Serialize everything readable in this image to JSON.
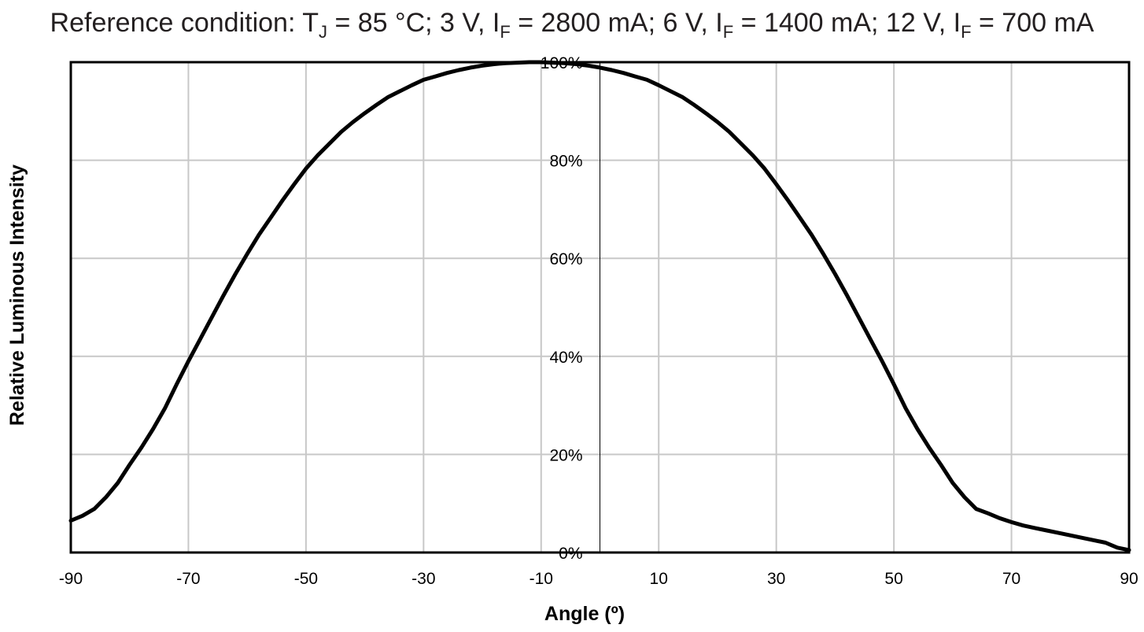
{
  "chart_data": {
    "type": "line",
    "title": {
      "prefix": "Reference condition: T",
      "tj_sub": "J",
      "part1": " = 85 °C; 3 V, I",
      "if_sub1": "F",
      "part2": " = 2800 mA; 6 V, I",
      "if_sub2": "F",
      "part3": " = 1400 mA; 12 V, I",
      "if_sub3": "F",
      "part4": " = 700 mA"
    },
    "xlabel": "Angle (º)",
    "ylabel": "Relative Luminous Intensity",
    "xlim": [
      -90,
      90
    ],
    "ylim": [
      0,
      100
    ],
    "x_ticks": [
      -90,
      -70,
      -50,
      -30,
      -10,
      10,
      30,
      50,
      70,
      90
    ],
    "x_tick_labels": [
      "-90",
      "-70",
      "-50",
      "-30",
      "-10",
      "10",
      "30",
      "50",
      "70",
      "90"
    ],
    "y_ticks": [
      0,
      20,
      40,
      60,
      80,
      100
    ],
    "y_tick_labels": [
      "0%",
      "20%",
      "40%",
      "60%",
      "80%",
      "100%"
    ],
    "x_grid": [
      -90,
      -70,
      -50,
      -30,
      -10,
      10,
      30,
      50,
      70,
      90
    ],
    "y_grid": [
      0,
      20,
      40,
      60,
      80,
      100
    ],
    "grid": true,
    "series_color": "#000000",
    "grid_color": "#c8c8c8",
    "series": [
      {
        "x": [
          -90,
          -88,
          -86,
          -84,
          -82,
          -80,
          -78,
          -76,
          -74,
          -72,
          -70,
          -68,
          -66,
          -64,
          -62,
          -60,
          -58,
          -56,
          -54,
          -52,
          -50,
          -48,
          -46,
          -44,
          -42,
          -40,
          -38,
          -36,
          -34,
          -32,
          -30,
          -28,
          -26,
          -24,
          -22,
          -20,
          -18,
          -16,
          -14,
          -12,
          -10,
          -8,
          -6,
          -4,
          -2,
          0,
          2,
          4,
          6,
          8,
          10,
          12,
          14,
          16,
          18,
          20,
          22,
          24,
          26,
          28,
          30,
          32,
          34,
          36,
          38,
          40,
          42,
          44,
          46,
          48,
          50,
          52,
          54,
          56,
          58,
          60,
          62,
          64,
          66,
          68,
          70,
          72,
          74,
          76,
          78,
          80,
          82,
          84,
          86,
          87,
          88,
          90
        ],
        "y": [
          6.5,
          7.5,
          8.9,
          11.3,
          14.2,
          17.9,
          21.4,
          25.2,
          29.4,
          34.3,
          39.0,
          43.5,
          48.0,
          52.5,
          56.8,
          60.9,
          64.8,
          68.3,
          71.8,
          75.1,
          78.3,
          81.0,
          83.4,
          85.8,
          87.8,
          89.6,
          91.3,
          92.9,
          94.1,
          95.3,
          96.4,
          97.1,
          97.8,
          98.4,
          98.9,
          99.3,
          99.6,
          99.8,
          99.9,
          100.0,
          100.0,
          99.9,
          99.8,
          99.6,
          99.3,
          98.9,
          98.4,
          97.8,
          97.1,
          96.4,
          95.3,
          94.1,
          92.9,
          91.3,
          89.6,
          87.8,
          85.8,
          83.4,
          81.0,
          78.3,
          75.1,
          71.8,
          68.3,
          64.8,
          60.9,
          56.8,
          52.5,
          48.0,
          43.5,
          39.0,
          34.3,
          29.4,
          25.2,
          21.4,
          17.9,
          14.2,
          11.3,
          8.9,
          8.0,
          7.0,
          6.2,
          5.5,
          5.0,
          4.5,
          4.0,
          3.5,
          3.0,
          2.5,
          2.0,
          1.5,
          1.0,
          0.5
        ]
      }
    ]
  }
}
